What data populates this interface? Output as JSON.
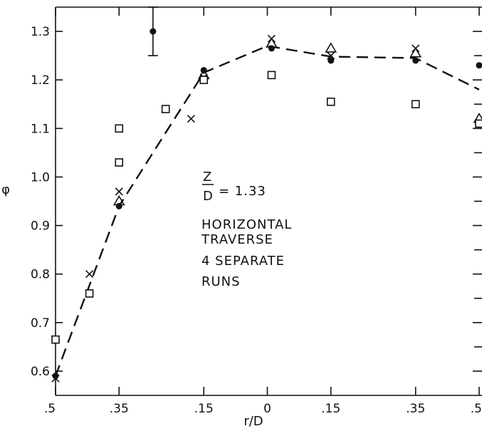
{
  "chart_data": {
    "type": "scatter",
    "xlabel": "r/D",
    "ylabel": "φ",
    "x_tick_labels": [
      ".5",
      ".35",
      ".15",
      "0",
      ".15",
      ".35",
      ".5"
    ],
    "x_tick_values": [
      -0.5,
      -0.35,
      -0.15,
      0,
      0.15,
      0.35,
      0.5
    ],
    "y_tick_labels": [
      "0.6",
      "0.7",
      "0.8",
      "0.9",
      "1.0",
      "1.1",
      "1.2",
      "1.3"
    ],
    "ylim": [
      0.55,
      1.35
    ],
    "xlim": [
      -0.5,
      0.5
    ],
    "grid": false,
    "annotation": {
      "ratio_numerator": "Z",
      "ratio_denominator": "D",
      "ratio_value": "= 1.33",
      "lines": [
        "HORIZONTAL",
        "TRAVERSE",
        "4 SEPARATE",
        "RUNS"
      ]
    },
    "series": [
      {
        "marker": "dot",
        "x": [
          -0.5,
          -0.35,
          -0.27,
          -0.15,
          0.01,
          0.15,
          0.35,
          0.5
        ],
        "y": [
          0.59,
          0.94,
          1.3,
          1.22,
          1.265,
          1.24,
          1.24,
          1.23
        ]
      },
      {
        "marker": "x",
        "x": [
          -0.5,
          -0.42,
          -0.35,
          -0.18,
          -0.15,
          0.01,
          0.15,
          0.35
        ],
        "y": [
          0.585,
          0.8,
          0.97,
          1.12,
          1.205,
          1.285,
          1.25,
          1.265
        ]
      },
      {
        "marker": "triangle",
        "x": [
          -0.35,
          -0.15,
          0.01,
          0.15,
          0.35,
          0.5
        ],
        "y": [
          0.95,
          1.21,
          1.275,
          1.265,
          1.255,
          1.12
        ]
      },
      {
        "marker": "square",
        "x": [
          -0.5,
          -0.42,
          -0.35,
          -0.35,
          -0.24,
          -0.15,
          0.01,
          0.15,
          0.35,
          0.5
        ],
        "y": [
          0.665,
          0.76,
          1.03,
          1.1,
          1.14,
          1.2,
          1.21,
          1.155,
          1.15,
          1.11
        ]
      }
    ],
    "error_bar": {
      "x": -0.27,
      "y": 1.3,
      "low": 1.25,
      "high": 1.35
    },
    "fit_line": {
      "style": "dashed",
      "x": [
        -0.5,
        -0.35,
        -0.15,
        0.0,
        0.15,
        0.35,
        0.5
      ],
      "y": [
        0.59,
        0.94,
        1.215,
        1.27,
        1.248,
        1.245,
        1.18
      ]
    }
  }
}
